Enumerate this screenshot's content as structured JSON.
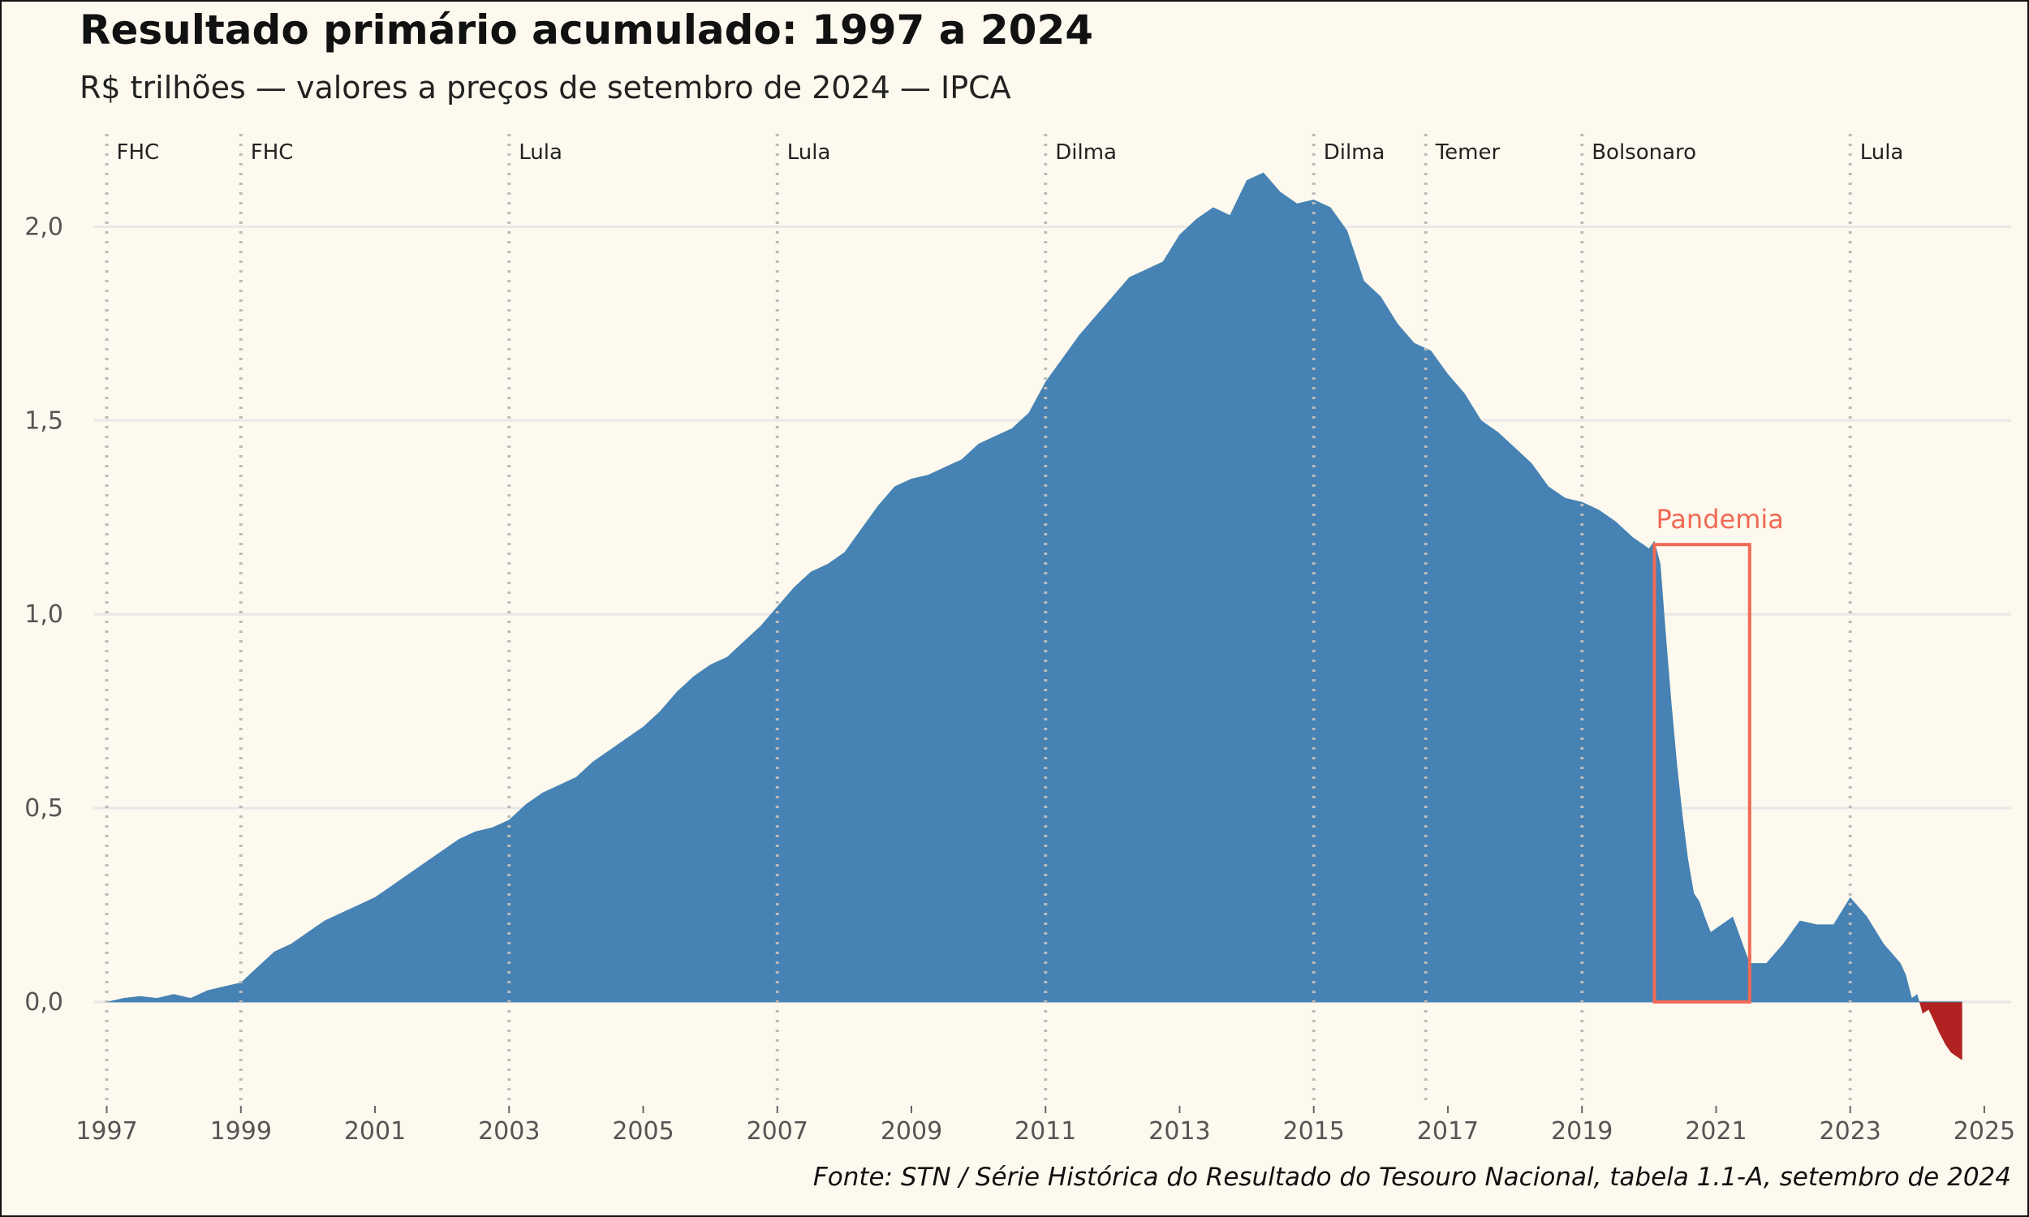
{
  "title": "Resultado primário acumulado: 1997 a 2024",
  "subtitle": "R$ trilhões — valores a preços de setembro de 2024 — IPCA",
  "source": "Fonte: STN / Série Histórica do Resultado do Tesouro Nacional, tabela 1.1-A, setembro de 2024",
  "colors": {
    "positive": "#4682b4",
    "negative": "#b22222",
    "annotation": "#f06a55",
    "grid": "#e8e8e8",
    "divider": "#bbbbbb",
    "background": "#fdf9ee"
  },
  "chart_data": {
    "type": "area",
    "xlim": [
      1996.8,
      2025.4
    ],
    "ylim": [
      -0.22,
      2.25
    ],
    "x_ticks": [
      1997,
      1999,
      2001,
      2003,
      2005,
      2007,
      2009,
      2011,
      2013,
      2015,
      2017,
      2019,
      2021,
      2023,
      2025
    ],
    "y_ticks": [
      {
        "value": 0,
        "label": "0,0"
      },
      {
        "value": 0.5,
        "label": "0,5"
      },
      {
        "value": 1.0,
        "label": "1,0"
      },
      {
        "value": 1.5,
        "label": "1,5"
      },
      {
        "value": 2.0,
        "label": "2,0"
      }
    ],
    "grid": "horizontal",
    "periods": [
      {
        "start": 1997.0,
        "label": "FHC"
      },
      {
        "start": 1999.0,
        "label": "FHC"
      },
      {
        "start": 2003.0,
        "label": "Lula"
      },
      {
        "start": 2007.0,
        "label": "Lula"
      },
      {
        "start": 2011.0,
        "label": "Dilma"
      },
      {
        "start": 2015.0,
        "label": "Dilma"
      },
      {
        "start": 2016.67,
        "label": "Temer"
      },
      {
        "start": 2019.0,
        "label": "Bolsonaro"
      },
      {
        "start": 2023.0,
        "label": "Lula"
      }
    ],
    "annotation": {
      "label": "Pandemia",
      "x_start": 2020.08,
      "x_end": 2021.5,
      "y_start": 0,
      "y_end": 1.18
    },
    "x": [
      1997.0,
      1997.25,
      1997.5,
      1997.75,
      1998.0,
      1998.25,
      1998.5,
      1998.75,
      1999.0,
      1999.25,
      1999.5,
      1999.75,
      2000.0,
      2000.25,
      2000.5,
      2000.75,
      2001.0,
      2001.25,
      2001.5,
      2001.75,
      2002.0,
      2002.25,
      2002.5,
      2002.75,
      2003.0,
      2003.25,
      2003.5,
      2003.75,
      2004.0,
      2004.25,
      2004.5,
      2004.75,
      2005.0,
      2005.25,
      2005.5,
      2005.75,
      2006.0,
      2006.25,
      2006.5,
      2006.75,
      2007.0,
      2007.25,
      2007.5,
      2007.75,
      2008.0,
      2008.25,
      2008.5,
      2008.75,
      2009.0,
      2009.25,
      2009.5,
      2009.75,
      2010.0,
      2010.25,
      2010.5,
      2010.75,
      2011.0,
      2011.25,
      2011.5,
      2011.75,
      2012.0,
      2012.25,
      2012.5,
      2012.75,
      2013.0,
      2013.25,
      2013.5,
      2013.75,
      2014.0,
      2014.25,
      2014.5,
      2014.75,
      2015.0,
      2015.25,
      2015.5,
      2015.75,
      2016.0,
      2016.25,
      2016.5,
      2016.75,
      2017.0,
      2017.25,
      2017.5,
      2017.75,
      2018.0,
      2018.25,
      2018.5,
      2018.75,
      2019.0,
      2019.25,
      2019.5,
      2019.75,
      2020.0,
      2020.08,
      2020.17,
      2020.25,
      2020.33,
      2020.42,
      2020.5,
      2020.58,
      2020.67,
      2020.75,
      2020.83,
      2020.92,
      2021.0,
      2021.25,
      2021.5,
      2021.75,
      2022.0,
      2022.25,
      2022.5,
      2022.75,
      2023.0,
      2023.25,
      2023.5,
      2023.75,
      2023.83,
      2023.92,
      2024.0,
      2024.08,
      2024.17,
      2024.25,
      2024.33,
      2024.42,
      2024.5,
      2024.58,
      2024.67
    ],
    "values": [
      0.0,
      0.01,
      0.015,
      0.01,
      0.02,
      0.01,
      0.03,
      0.04,
      0.05,
      0.09,
      0.13,
      0.15,
      0.18,
      0.21,
      0.23,
      0.25,
      0.27,
      0.3,
      0.33,
      0.36,
      0.39,
      0.42,
      0.44,
      0.45,
      0.47,
      0.51,
      0.54,
      0.56,
      0.58,
      0.62,
      0.65,
      0.68,
      0.71,
      0.75,
      0.8,
      0.84,
      0.87,
      0.89,
      0.93,
      0.97,
      1.02,
      1.07,
      1.11,
      1.13,
      1.16,
      1.22,
      1.28,
      1.33,
      1.35,
      1.36,
      1.38,
      1.4,
      1.44,
      1.46,
      1.48,
      1.52,
      1.6,
      1.66,
      1.72,
      1.77,
      1.82,
      1.87,
      1.89,
      1.91,
      1.98,
      2.02,
      2.05,
      2.03,
      2.12,
      2.14,
      2.09,
      2.06,
      2.07,
      2.05,
      1.99,
      1.86,
      1.82,
      1.75,
      1.7,
      1.68,
      1.62,
      1.57,
      1.5,
      1.47,
      1.43,
      1.39,
      1.33,
      1.3,
      1.29,
      1.27,
      1.24,
      1.2,
      1.17,
      1.19,
      1.13,
      0.95,
      0.78,
      0.61,
      0.48,
      0.37,
      0.28,
      0.26,
      0.22,
      0.18,
      0.19,
      0.22,
      0.1,
      0.1,
      0.15,
      0.21,
      0.2,
      0.2,
      0.27,
      0.22,
      0.15,
      0.1,
      0.07,
      0.01,
      0.02,
      -0.03,
      -0.02,
      -0.05,
      -0.08,
      -0.11,
      -0.13,
      -0.14,
      -0.15
    ]
  }
}
